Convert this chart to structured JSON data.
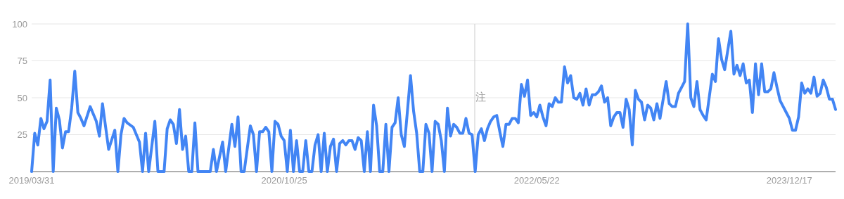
{
  "chart_data": {
    "type": "line",
    "xlim": [
      "2019-03-31",
      "2024-03-31"
    ],
    "ylim": [
      0,
      100
    ],
    "xticks": [
      {
        "value": "2019-03-31",
        "label": "2019/03/31"
      },
      {
        "value": "2020-10-25",
        "label": "2020/10/25"
      },
      {
        "value": "2022-05-22",
        "label": "2022/05/22"
      },
      {
        "value": "2023-12-17",
        "label": "2023/12/17"
      }
    ],
    "yticks": [
      {
        "value": 0,
        "label": null
      },
      25,
      50,
      75,
      100
    ],
    "grid": "y",
    "marker": "none",
    "line_style": "solid",
    "ref_lines": [
      {
        "axis": "x",
        "value": "2022-01-01",
        "label": "注",
        "color": "#cccccc"
      }
    ],
    "series": [
      {
        "color": "#4285f4",
        "x": [
          "2019-03-31",
          "2019-04-07",
          "2019-04-14",
          "2019-04-21",
          "2019-04-28",
          "2019-05-05",
          "2019-05-12",
          "2019-05-19",
          "2019-05-26",
          "2019-06-02",
          "2019-06-09",
          "2019-06-16",
          "2019-06-23",
          "2019-06-30",
          "2019-07-07",
          "2019-07-14",
          "2019-07-21",
          "2019-07-28",
          "2019-08-11",
          "2019-08-25",
          "2019-09-01",
          "2019-09-08",
          "2019-09-22",
          "2019-10-06",
          "2019-10-13",
          "2019-10-20",
          "2019-10-27",
          "2019-11-03",
          "2019-11-17",
          "2019-12-01",
          "2019-12-08",
          "2019-12-15",
          "2019-12-22",
          "2020-01-05",
          "2020-01-12",
          "2020-01-26",
          "2020-02-02",
          "2020-02-09",
          "2020-02-16",
          "2020-02-23",
          "2020-03-01",
          "2020-03-08",
          "2020-03-15",
          "2020-03-22",
          "2020-03-29",
          "2020-04-05",
          "2020-04-12",
          "2020-05-10",
          "2020-05-17",
          "2020-05-24",
          "2020-06-07",
          "2020-06-14",
          "2020-06-28",
          "2020-07-05",
          "2020-07-12",
          "2020-07-19",
          "2020-07-26",
          "2020-08-09",
          "2020-08-16",
          "2020-08-23",
          "2020-08-30",
          "2020-09-06",
          "2020-09-13",
          "2020-09-20",
          "2020-09-27",
          "2020-10-04",
          "2020-10-11",
          "2020-10-18",
          "2020-10-25",
          "2020-11-01",
          "2020-11-08",
          "2020-11-15",
          "2020-11-22",
          "2020-11-29",
          "2020-12-06",
          "2020-12-13",
          "2020-12-20",
          "2020-12-27",
          "2021-01-03",
          "2021-01-10",
          "2021-01-17",
          "2021-01-24",
          "2021-01-31",
          "2021-02-07",
          "2021-02-14",
          "2021-02-21",
          "2021-02-28",
          "2021-03-07",
          "2021-03-14",
          "2021-03-21",
          "2021-03-28",
          "2021-04-04",
          "2021-04-11",
          "2021-04-18",
          "2021-04-25",
          "2021-05-02",
          "2021-05-09",
          "2021-05-16",
          "2021-05-23",
          "2021-05-30",
          "2021-06-06",
          "2021-06-13",
          "2021-06-20",
          "2021-06-27",
          "2021-07-04",
          "2021-07-11",
          "2021-07-18",
          "2021-07-25",
          "2021-08-08",
          "2021-08-15",
          "2021-08-22",
          "2021-08-29",
          "2021-09-05",
          "2021-09-12",
          "2021-09-19",
          "2021-09-26",
          "2021-10-03",
          "2021-10-10",
          "2021-10-17",
          "2021-10-24",
          "2021-10-31",
          "2021-11-07",
          "2021-11-14",
          "2021-11-21",
          "2021-11-28",
          "2021-12-05",
          "2021-12-12",
          "2021-12-19",
          "2021-12-26",
          "2022-01-02",
          "2022-01-09",
          "2022-01-16",
          "2022-01-23",
          "2022-01-30",
          "2022-02-06",
          "2022-02-13",
          "2022-02-20",
          "2022-02-27",
          "2022-03-06",
          "2022-03-13",
          "2022-03-20",
          "2022-03-27",
          "2022-04-03",
          "2022-04-10",
          "2022-04-17",
          "2022-04-24",
          "2022-05-01",
          "2022-05-08",
          "2022-05-15",
          "2022-05-22",
          "2022-05-29",
          "2022-06-05",
          "2022-06-12",
          "2022-06-19",
          "2022-06-26",
          "2022-07-03",
          "2022-07-10",
          "2022-07-17",
          "2022-07-24",
          "2022-07-31",
          "2022-08-07",
          "2022-08-14",
          "2022-08-21",
          "2022-08-28",
          "2022-09-04",
          "2022-09-11",
          "2022-09-18",
          "2022-09-25",
          "2022-10-02",
          "2022-10-09",
          "2022-10-16",
          "2022-10-23",
          "2022-10-30",
          "2022-11-06",
          "2022-11-13",
          "2022-11-20",
          "2022-11-27",
          "2022-12-04",
          "2022-12-11",
          "2022-12-18",
          "2022-12-25",
          "2023-01-01",
          "2023-01-08",
          "2023-01-15",
          "2023-01-22",
          "2023-01-29",
          "2023-02-05",
          "2023-02-12",
          "2023-02-19",
          "2023-02-26",
          "2023-03-12",
          "2023-03-19",
          "2023-03-26",
          "2023-04-02",
          "2023-04-09",
          "2023-04-16",
          "2023-04-23",
          "2023-04-30",
          "2023-05-07",
          "2023-05-14",
          "2023-05-21",
          "2023-05-28",
          "2023-06-04",
          "2023-06-11",
          "2023-06-25",
          "2023-07-02",
          "2023-07-09",
          "2023-07-16",
          "2023-07-23",
          "2023-08-06",
          "2023-08-13",
          "2023-08-20",
          "2023-08-27",
          "2023-09-03",
          "2023-09-10",
          "2023-09-17",
          "2023-09-24",
          "2023-10-01",
          "2023-10-08",
          "2023-10-15",
          "2023-10-22",
          "2023-10-29",
          "2023-11-05",
          "2023-11-12",
          "2023-11-19",
          "2023-11-26",
          "2023-12-03",
          "2023-12-10",
          "2023-12-17",
          "2023-12-24",
          "2023-12-31",
          "2024-01-07",
          "2024-01-14",
          "2024-01-21",
          "2024-01-28",
          "2024-02-04",
          "2024-02-11",
          "2024-02-18",
          "2024-02-25",
          "2024-03-03",
          "2024-03-10",
          "2024-03-17",
          "2024-03-24",
          "2024-03-31"
        ],
        "values": [
          0,
          26,
          18,
          36,
          29,
          34,
          62,
          0,
          43,
          35,
          16,
          27,
          27,
          43,
          68,
          40,
          36,
          31,
          44,
          34,
          24,
          46,
          15,
          28,
          0,
          25,
          36,
          33,
          30,
          20,
          0,
          26,
          0,
          34,
          0,
          0,
          29,
          35,
          32,
          19,
          42,
          15,
          24,
          0,
          0,
          33,
          0,
          0,
          15,
          0,
          20,
          0,
          32,
          17,
          37,
          0,
          0,
          31,
          25,
          0,
          27,
          27,
          30,
          27,
          0,
          34,
          32,
          24,
          21,
          0,
          28,
          0,
          21,
          0,
          0,
          21,
          0,
          0,
          18,
          25,
          0,
          26,
          0,
          17,
          22,
          0,
          19,
          21,
          18,
          21,
          21,
          15,
          23,
          21,
          0,
          27,
          0,
          45,
          31,
          0,
          0,
          32,
          0,
          30,
          33,
          50,
          25,
          17,
          65,
          41,
          26,
          0,
          0,
          32,
          26,
          0,
          34,
          32,
          21,
          0,
          43,
          24,
          32,
          30,
          26,
          26,
          36,
          26,
          25,
          0,
          25,
          29,
          21,
          29,
          34,
          37,
          38,
          27,
          17,
          32,
          32,
          36,
          36,
          33,
          59,
          51,
          62,
          38,
          40,
          37,
          45,
          37,
          31,
          46,
          44,
          50,
          47,
          47,
          71,
          60,
          65,
          50,
          49,
          53,
          45,
          56,
          45,
          52,
          52,
          54,
          58,
          47,
          50,
          31,
          37,
          40,
          40,
          30,
          49,
          42,
          18,
          55,
          49,
          47,
          35,
          45,
          43,
          35,
          46,
          36,
          61,
          46,
          44,
          44,
          53,
          57,
          61,
          100,
          50,
          44,
          61,
          42,
          38,
          35,
          66,
          61,
          90,
          76,
          69,
          95,
          66,
          72,
          65,
          73,
          60,
          62,
          40,
          73,
          52,
          73,
          54,
          54,
          56,
          67,
          57,
          48,
          44,
          40,
          36,
          28,
          28,
          37,
          60,
          53,
          56,
          53,
          64,
          51,
          53,
          62,
          57,
          49,
          49,
          42
        ]
      }
    ]
  }
}
